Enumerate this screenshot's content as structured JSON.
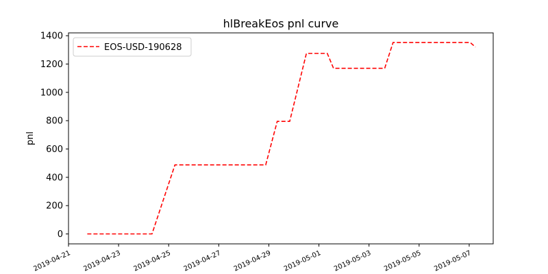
{
  "chart_data": {
    "type": "line",
    "title": "hlBreakEos pnl curve",
    "xlabel": "",
    "ylabel": "pnl",
    "legend_position": "top-left",
    "grid": false,
    "xlim": [
      "2019-04-21",
      "2019-05-07T23:00"
    ],
    "ylim": [
      -70,
      1420
    ],
    "x_ticks": [
      "2019-04-21",
      "2019-04-23",
      "2019-04-25",
      "2019-04-27",
      "2019-04-29",
      "2019-05-01",
      "2019-05-03",
      "2019-05-05",
      "2019-05-07"
    ],
    "y_ticks": [
      0,
      200,
      400,
      600,
      800,
      1000,
      1200,
      1400
    ],
    "series": [
      {
        "name": "EOS-USD-190628",
        "color": "#ff0000",
        "style": "dashed",
        "x": [
          "2019-04-21T18:00",
          "2019-04-24T08:00",
          "2019-04-25T06:00",
          "2019-04-28T21:00",
          "2019-04-29T08:00",
          "2019-04-29T20:00",
          "2019-04-30T12:00",
          "2019-05-01T08:00",
          "2019-05-01T14:00",
          "2019-05-03T15:00",
          "2019-05-03T23:00",
          "2019-05-07T01:00",
          "2019-05-07T06:00"
        ],
        "y": [
          0,
          0,
          488,
          488,
          795,
          795,
          1275,
          1275,
          1170,
          1170,
          1352,
          1352,
          1320
        ]
      }
    ]
  }
}
